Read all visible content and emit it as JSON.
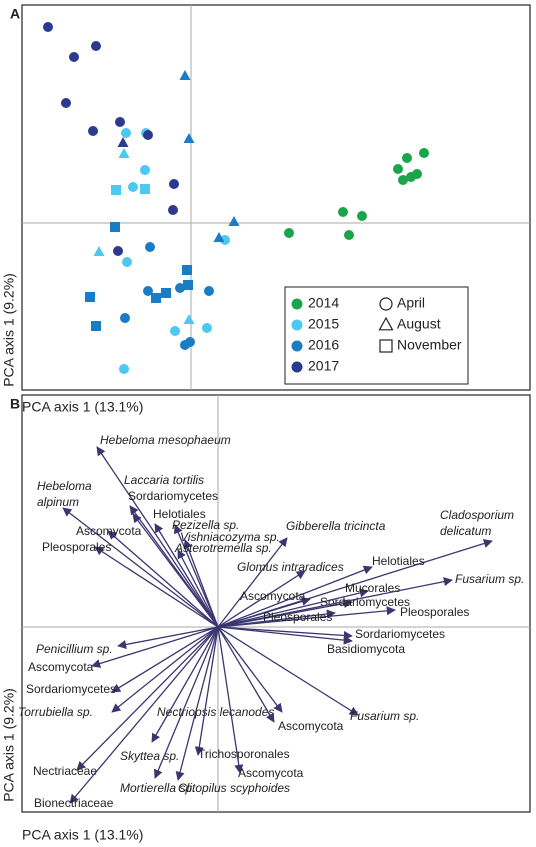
{
  "chart_data": [
    {
      "type": "scatter",
      "panel_label": "A",
      "xlabel": "PCA axis 1 (13.1%)",
      "ylabel": "PCA axis 1 (9.2%)",
      "xlim": [
        -1.69,
        3.39
      ],
      "ylim": [
        -1.67,
        2.18
      ],
      "legend": "bottom-right",
      "markers": [
        {
          "name": "April",
          "marker": "circle"
        },
        {
          "name": "August",
          "marker": "triangle"
        },
        {
          "name": "November",
          "marker": "square"
        }
      ],
      "series": [
        {
          "name": "2014",
          "color": "#1aa54a",
          "groups": [
            {
              "x": [
                0.98,
                1.52,
                1.71,
                1.58,
                2.07,
                2.33,
                2.12,
                2.2,
                2.26,
                2.16
              ],
              "y": [
                -0.1,
                0.11,
                0.07,
                -0.12,
                0.54,
                0.7,
                0.43,
                0.46,
                0.49,
                0.65
              ]
            },
            {
              "x": [],
              "y": []
            },
            {
              "x": [],
              "y": []
            }
          ]
        },
        {
          "name": "2015",
          "color": "#4dc8f0",
          "groups": [
            {
              "x": [
                -0.65,
                -0.45,
                -0.46,
                -0.58,
                -0.64,
                0.34,
                -0.16,
                0.16,
                -0.67
              ],
              "y": [
                0.9,
                0.9,
                0.53,
                0.36,
                -0.39,
                -0.17,
                -1.08,
                -1.05,
                -1.46
              ]
            },
            {
              "x": [
                -0.67,
                -0.92,
                -0.02
              ],
              "y": [
                0.69,
                -0.29,
                -0.97
              ]
            },
            {
              "x": [
                -0.75,
                -0.46
              ],
              "y": [
                0.33,
                0.34
              ]
            }
          ]
        },
        {
          "name": "2016",
          "color": "#1a7cc4",
          "groups": [
            {
              "x": [
                -0.41,
                -0.66,
                -0.11,
                0.18,
                -0.01,
                -0.06,
                -0.43
              ],
              "y": [
                -0.24,
                -0.95,
                -0.65,
                -0.68,
                -1.19,
                -1.22,
                -0.68
              ]
            },
            {
              "x": [
                -0.06,
                -0.02,
                0.28,
                0.43
              ],
              "y": [
                1.47,
                0.84,
                -0.15,
                0.01
              ]
            },
            {
              "x": [
                -0.76,
                -1.01,
                -0.95,
                -0.35,
                -0.25,
                -0.04,
                -0.03
              ],
              "y": [
                -0.04,
                -0.74,
                -1.03,
                -0.75,
                -0.7,
                -0.47,
                -0.62
              ]
            }
          ]
        },
        {
          "name": "2017",
          "color": "#2b3a8f",
          "groups": [
            {
              "x": [
                -1.43,
                -1.17,
                -0.95,
                -1.25,
                -0.98,
                -0.71,
                -0.43,
                -0.17,
                -0.18,
                -0.73
              ],
              "y": [
                1.96,
                1.66,
                1.77,
                1.2,
                0.92,
                1.01,
                0.88,
                0.39,
                0.13,
                -0.28
              ]
            },
            {
              "x": [
                -0.68
              ],
              "y": [
                0.8
              ]
            },
            {
              "x": [],
              "y": []
            }
          ]
        }
      ]
    },
    {
      "type": "biplot",
      "panel_label": "B",
      "xlabel": "PCA axis 1 (13.1%)",
      "ylabel": "PCA axis 1 (9.2%)",
      "xlim": [
        -1.96,
        3.12
      ],
      "ylim": [
        -1.85,
        2.32
      ],
      "color": "#3b3670",
      "arrows": [
        {
          "label": "Hebeloma mesophaeum",
          "italic": true,
          "x": -1.21,
          "y": 1.8
        },
        {
          "label": "Hebeloma\nalpinum",
          "italic": true,
          "x": -1.55,
          "y": 1.19
        },
        {
          "label": "Laccaria tortilis",
          "italic": true,
          "x": -0.88,
          "y": 1.21
        },
        {
          "label": "Sordariomycetes",
          "italic": false,
          "x": -0.85,
          "y": 1.13
        },
        {
          "label": "Helotiales",
          "italic": false,
          "x": -0.63,
          "y": 1.03
        },
        {
          "label": "Ascomycota",
          "italic": false,
          "x": -1.1,
          "y": 0.96
        },
        {
          "label": "Pleosporales",
          "italic": false,
          "x": -1.23,
          "y": 0.8
        },
        {
          "label": "Pezizella sp.",
          "italic": true,
          "x": -0.43,
          "y": 1.02
        },
        {
          "label": "Vishniacozyma sp.",
          "italic": true,
          "x": -0.33,
          "y": 0.87
        },
        {
          "label": "Asterotremella sp.",
          "italic": true,
          "x": -0.4,
          "y": 0.77
        },
        {
          "label": "Gibberella tricincta",
          "italic": true,
          "x": 0.69,
          "y": 0.89
        },
        {
          "label": "Cladosporium\ndelicatum",
          "italic": true,
          "x": 2.74,
          "y": 0.86
        },
        {
          "label": "Glomus intraradices",
          "italic": true,
          "x": 0.87,
          "y": 0.56
        },
        {
          "label": "Helotiales",
          "italic": false,
          "x": 1.54,
          "y": 0.6
        },
        {
          "label": "Mucorales",
          "italic": false,
          "x": 1.5,
          "y": 0.36
        },
        {
          "label": "Ascomycota",
          "italic": false,
          "x": 0.92,
          "y": 0.28
        },
        {
          "label": "Sordariomycetes",
          "italic": false,
          "x": 1.34,
          "y": 0.25
        },
        {
          "label": "Fusarium sp.",
          "italic": true,
          "x": 2.34,
          "y": 0.47
        },
        {
          "label": "Pleosporales",
          "italic": false,
          "x": 1.77,
          "y": 0.17
        },
        {
          "label": "Pleosporales",
          "italic": false,
          "x": 1.17,
          "y": 0.14
        },
        {
          "label": "Sordariomycetes",
          "italic": false,
          "x": 1.34,
          "y": -0.09
        },
        {
          "label": "Basidiomycota",
          "italic": false,
          "x": 1.34,
          "y": -0.14
        },
        {
          "label": "Penicillium sp.",
          "italic": true,
          "x": -1.0,
          "y": -0.19
        },
        {
          "label": "Ascomycota",
          "italic": false,
          "x": -1.26,
          "y": -0.39
        },
        {
          "label": "Sordariomycetes",
          "italic": false,
          "x": -1.06,
          "y": -0.65
        },
        {
          "label": "Torrubiella sp.",
          "italic": true,
          "x": -1.06,
          "y": -0.85
        },
        {
          "label": "Nectriopsis lecanodes",
          "italic": true,
          "x": 0.64,
          "y": -0.85
        },
        {
          "label": "Ascomycota",
          "italic": false,
          "x": 0.56,
          "y": -0.95
        },
        {
          "label": "Fusarium sp.",
          "italic": true,
          "x": 1.4,
          "y": -0.88
        },
        {
          "label": "Skyttea sp.",
          "italic": true,
          "x": -0.66,
          "y": -1.15
        },
        {
          "label": "Trichosporonales",
          "italic": false,
          "x": -0.2,
          "y": -1.28
        },
        {
          "label": "Ascomycota",
          "italic": false,
          "x": 0.22,
          "y": -1.46
        },
        {
          "label": "Nectriaceae",
          "italic": false,
          "x": -1.41,
          "y": -1.43
        },
        {
          "label": "Mortierella sp.",
          "italic": true,
          "x": -0.63,
          "y": -1.51
        },
        {
          "label": "Clitopilus scyphoides",
          "italic": true,
          "x": -0.4,
          "y": -1.53
        },
        {
          "label": "Bionectriaceae",
          "italic": false,
          "x": -1.48,
          "y": -1.76
        }
      ]
    }
  ]
}
